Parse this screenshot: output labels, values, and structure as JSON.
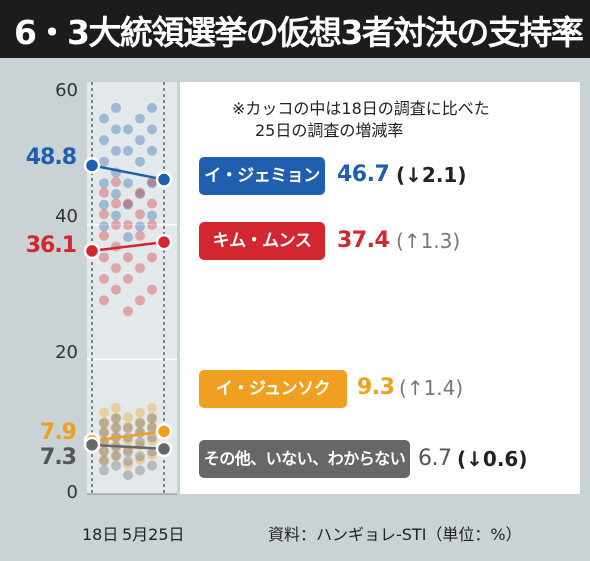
{
  "title": "6・3大統領選挙の仮想3者対決の支持率",
  "note_line1": "※カッコの中は18日の調査に比べた",
  "note_line2": "25日の調査の増減率",
  "source": "資料：ハンギョレ-STI（単位：%）",
  "x_label_start": "18日",
  "x_label_end": "5月25日",
  "candidates": [
    {
      "name": "イ・ジェミョン",
      "start": "48.8",
      "end": "46.7",
      "change": "2.1",
      "dir": "↓",
      "color": "#1f5fae"
    },
    {
      "name": "キム・ムンス",
      "start": "36.1",
      "end": "37.4",
      "change": "1.3",
      "dir": "↑",
      "color": "#d22630"
    },
    {
      "name": "イ・ジュンソク",
      "start": "7.9",
      "end": "9.3",
      "change": "1.4",
      "dir": "↑",
      "color": "#f0a020"
    },
    {
      "name": "その他、いない、わからない",
      "start": "7.3",
      "end": "6.7",
      "change": "0.6",
      "dir": "↓",
      "color": "#676767"
    }
  ],
  "chart_data": {
    "type": "scatter",
    "title": "6・3大統領選挙の仮想3者対決の支持率",
    "ylim": [
      0,
      60
    ],
    "yticks": [
      "0",
      "20",
      "40",
      "60"
    ],
    "x": [
      "18日",
      "5月25日"
    ],
    "series": [
      {
        "name": "イ・ジェミョン",
        "values": [
          48.8,
          46.7
        ],
        "color": "#1f5fae"
      },
      {
        "name": "キム・ムンス",
        "values": [
          36.1,
          37.4
        ],
        "color": "#d22630"
      },
      {
        "name": "イ・ジュンソク",
        "values": [
          7.9,
          9.3
        ],
        "color": "#f0a020"
      },
      {
        "name": "その他、いない、わからない",
        "values": [
          7.3,
          6.7
        ],
        "color": "#676767"
      }
    ],
    "unit": "%"
  }
}
